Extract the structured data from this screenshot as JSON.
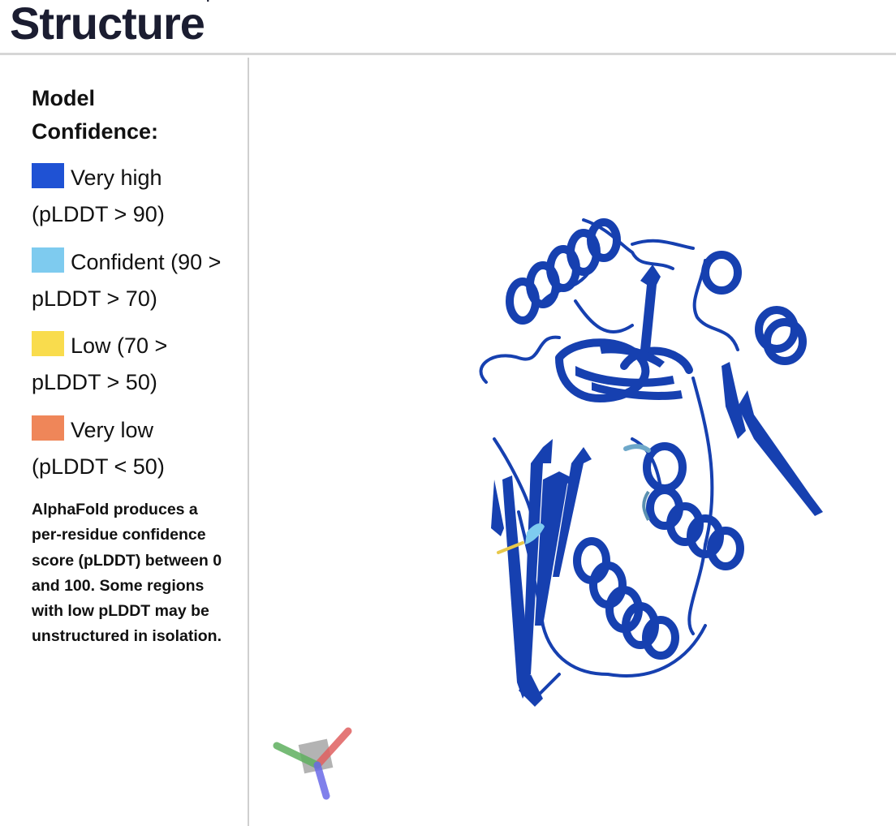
{
  "header": {
    "title": "Structure",
    "info_marker": "i"
  },
  "legend": {
    "title": "Model Confidence:",
    "items": [
      {
        "label": "Very high (pLDDT > 90)",
        "color": "#1f52d4"
      },
      {
        "label": "Confident (90 > pLDDT > 70)",
        "color": "#7ecbef"
      },
      {
        "label": "Low (70 > pLDDT > 50)",
        "color": "#f9dc4d"
      },
      {
        "label": "Very low (pLDDT < 50)",
        "color": "#ef8659"
      }
    ],
    "note": "AlphaFold produces a per-residue confidence score (pLDDT) between 0 and 100. Some regions with low pLDDT may be unstructured in isolation."
  },
  "viewer": {
    "protein_color": "#1640b0",
    "axes": {
      "x_color": "#e06060",
      "y_color": "#5fb05f",
      "z_color": "#6a6ae8"
    }
  }
}
